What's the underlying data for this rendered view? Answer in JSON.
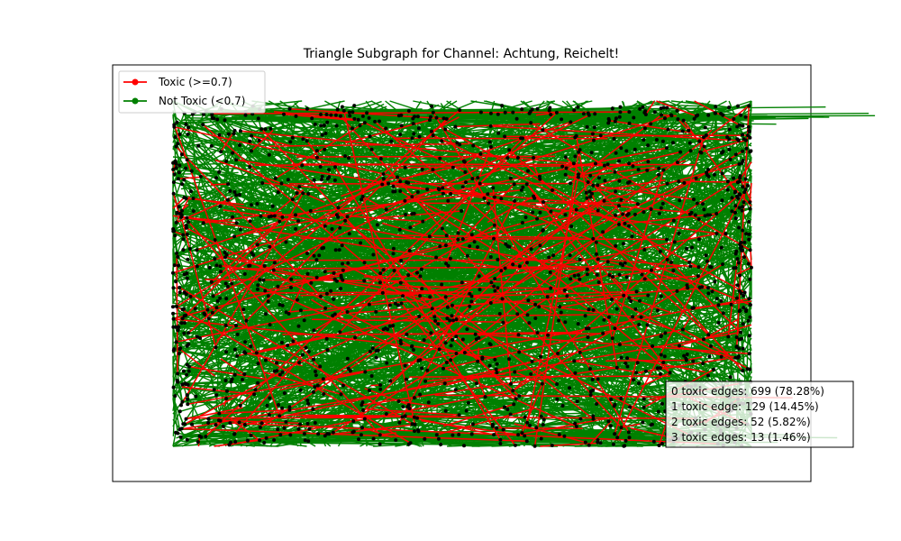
{
  "chart_data": {
    "type": "network",
    "title": "Triangle Subgraph for Channel: Achtung, Reichelt!",
    "xlabel": "",
    "ylabel": "",
    "grid": false,
    "legend_position": "top-left",
    "legend": [
      {
        "label": "Toxic (>=0.7)",
        "color": "#ff0000"
      },
      {
        "label": "Not Toxic (<0.7)",
        "color": "#008000"
      }
    ],
    "node_color": "#000000",
    "triangle_stats": [
      {
        "label": "0 toxic edges: 699 (78.28%)",
        "toxic_edges": 0,
        "count": 699,
        "percent": 78.28
      },
      {
        "label": "1 toxic edge: 129 (14.45%)",
        "toxic_edges": 1,
        "count": 129,
        "percent": 14.45
      },
      {
        "label": "2 toxic edges: 52 (5.82%)",
        "toxic_edges": 2,
        "count": 52,
        "percent": 5.82
      },
      {
        "label": "3 toxic edges: 13 (1.46%)",
        "toxic_edges": 3,
        "count": 13,
        "percent": 1.46
      }
    ],
    "stats_position": "bottom-right"
  }
}
